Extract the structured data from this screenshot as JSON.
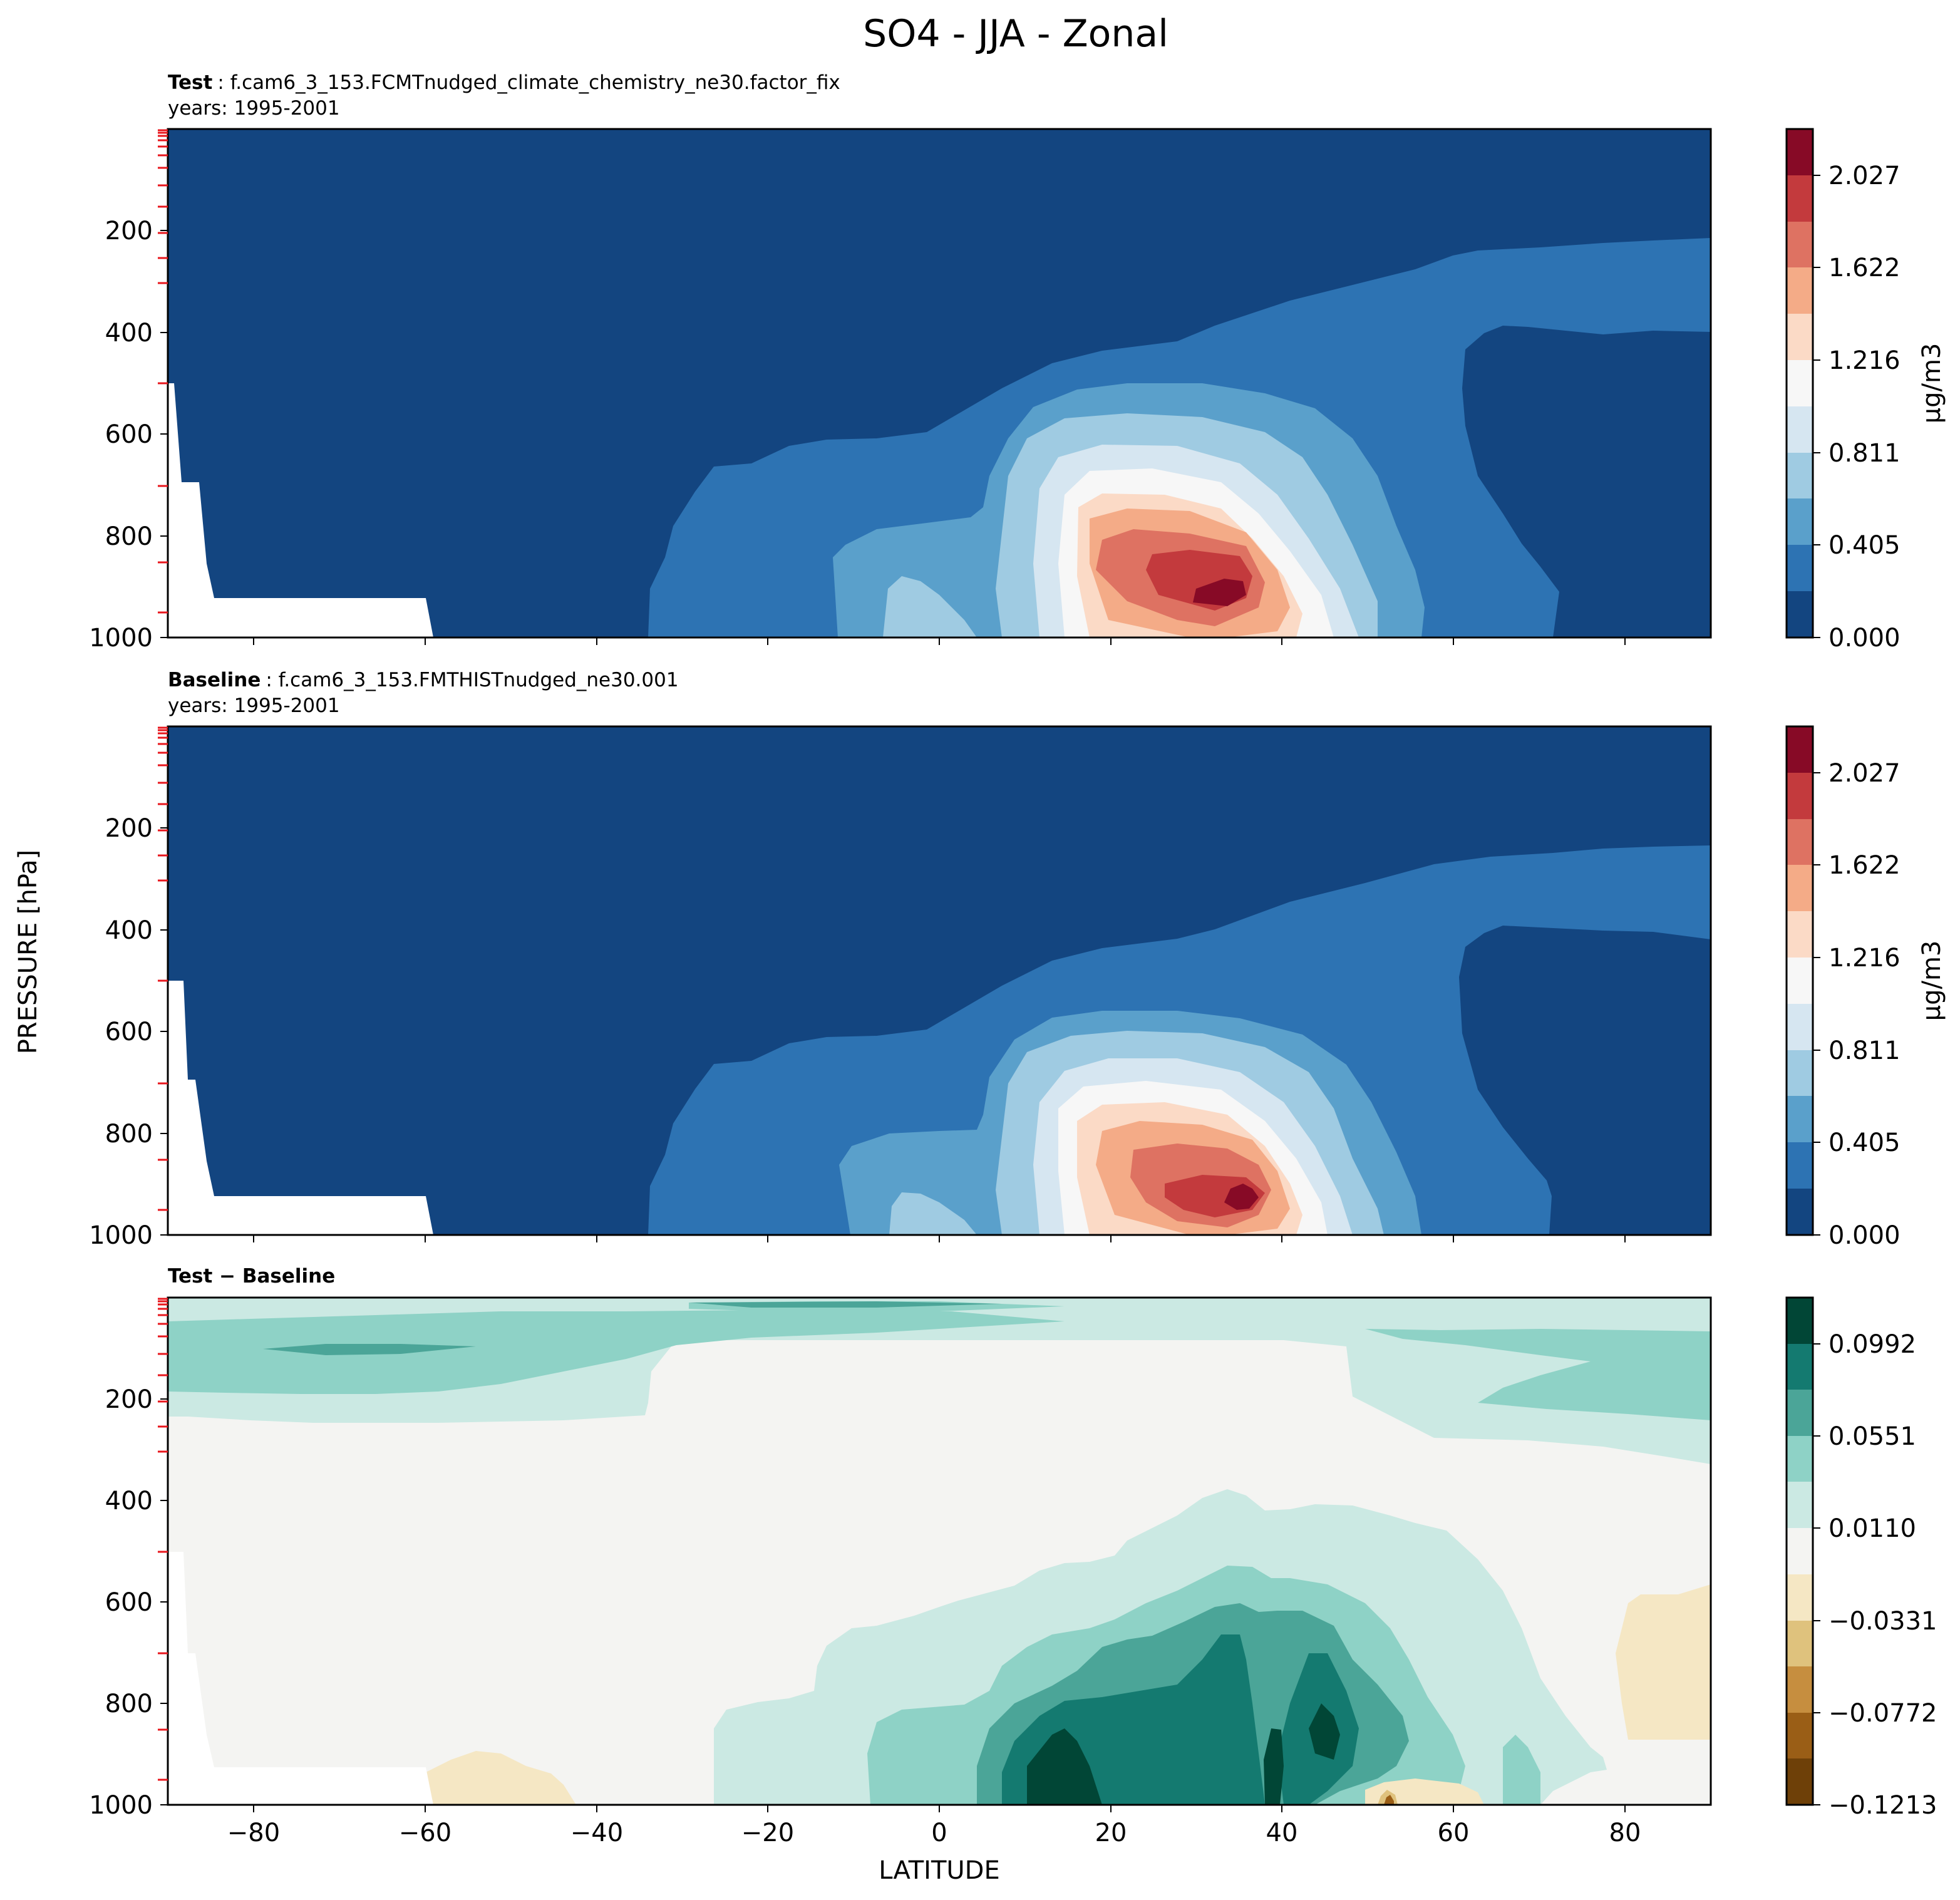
{
  "figure": {
    "suptitle": "SO4 - JJA - Zonal",
    "xlabel": "LATITUDE",
    "ylabel": "PRESSURE [hPa]"
  },
  "panels": {
    "test": {
      "label_bold": "Test",
      "label_rest": ": f.cam6_3_153.FCMTnudged_climate_chemistry_ne30.factor_fix",
      "years": "years: 1995-2001",
      "cbar_label": "μg/m3"
    },
    "baseline": {
      "label_bold": "Baseline",
      "label_rest": ": f.cam6_3_153.FMTHISTnudged_ne30.001",
      "years": "years: 1995-2001",
      "cbar_label": "μg/m3"
    },
    "diff": {
      "label_bold": "Test − Baseline"
    }
  },
  "chart_data": [
    {
      "type": "heatmap",
      "name": "Test",
      "title": "Test : f.cam6_3_153.FCMTnudged_climate_chemistry_ne30.factor_fix",
      "xlabel": "LATITUDE",
      "ylabel": "PRESSURE [hPa]",
      "xlim": [
        -90,
        90
      ],
      "ylim": [
        1000,
        0
      ],
      "y_ticks": [
        "200",
        "400",
        "600",
        "800",
        "1000"
      ],
      "colorbar": {
        "label": "μg/m3",
        "ticks": [
          "0.000",
          "0.405",
          "0.811",
          "1.216",
          "1.622",
          "2.027"
        ],
        "colors": [
          "#134580",
          "#2d73b3",
          "#5aa0cb",
          "#9fcbe2",
          "#d6e6f1",
          "#f7f7f7",
          "#fbdac6",
          "#f4ab87",
          "#de7262",
          "#c33a3d",
          "#870a26"
        ]
      },
      "features": [
        {
          "desc": "maximum",
          "lat": 36,
          "pressure": 930,
          "value": 2.1
        },
        {
          "desc": "background upper troposphere",
          "value": 0.1
        }
      ]
    },
    {
      "type": "heatmap",
      "name": "Baseline",
      "title": "Baseline : f.cam6_3_153.FMTHISTnudged_ne30.001",
      "xlabel": "LATITUDE",
      "ylabel": "PRESSURE [hPa]",
      "xlim": [
        -90,
        90
      ],
      "ylim": [
        1000,
        0
      ],
      "y_ticks": [
        "200",
        "400",
        "600",
        "800",
        "1000"
      ],
      "colorbar": {
        "label": "μg/m3",
        "ticks": [
          "0.000",
          "0.405",
          "0.811",
          "1.216",
          "1.622",
          "2.027"
        ],
        "colors": [
          "#134580",
          "#2d73b3",
          "#5aa0cb",
          "#9fcbe2",
          "#d6e6f1",
          "#f7f7f7",
          "#fbdac6",
          "#f4ab87",
          "#de7262",
          "#c33a3d",
          "#870a26"
        ]
      },
      "features": [
        {
          "desc": "maximum",
          "lat": 36,
          "pressure": 930,
          "value": 2.1
        }
      ]
    },
    {
      "type": "heatmap",
      "name": "Test - Baseline",
      "title": "Test − Baseline",
      "xlabel": "LATITUDE",
      "ylabel": "PRESSURE [hPa]",
      "xlim": [
        -90,
        90
      ],
      "ylim": [
        1000,
        0
      ],
      "x_ticks": [
        "−80",
        "−60",
        "−40",
        "−20",
        "0",
        "20",
        "40",
        "60",
        "80"
      ],
      "y_ticks": [
        "200",
        "400",
        "600",
        "800",
        "1000"
      ],
      "colorbar": {
        "ticks": [
          "−0.1213",
          "−0.0772",
          "−0.0331",
          "0.0110",
          "0.0551",
          "0.0992"
        ],
        "colors": [
          "#6e4008",
          "#9a5e16",
          "#c68e3f",
          "#dfc27d",
          "#f5e7c4",
          "#f4f4f2",
          "#cbe9e3",
          "#8ed2c6",
          "#4ba598",
          "#147a70",
          "#014636"
        ]
      },
      "features": [
        {
          "desc": "positive max",
          "lat": 15,
          "pressure": 950,
          "value": 0.11
        },
        {
          "desc": "negative min",
          "lat": 52,
          "pressure": 1000,
          "value": -0.12
        }
      ]
    }
  ]
}
